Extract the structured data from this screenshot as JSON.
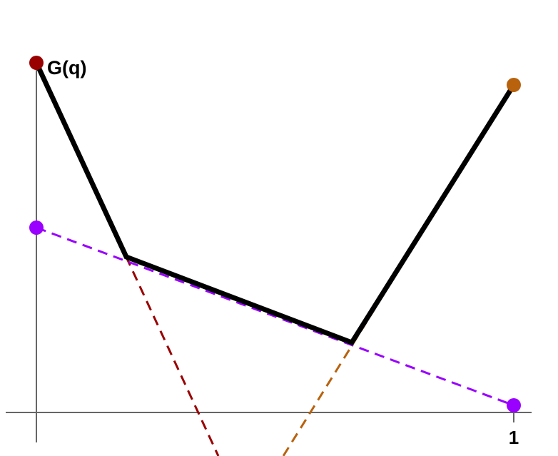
{
  "labels": {
    "y_axis": "G(q)",
    "x_tick": "1"
  }
}
